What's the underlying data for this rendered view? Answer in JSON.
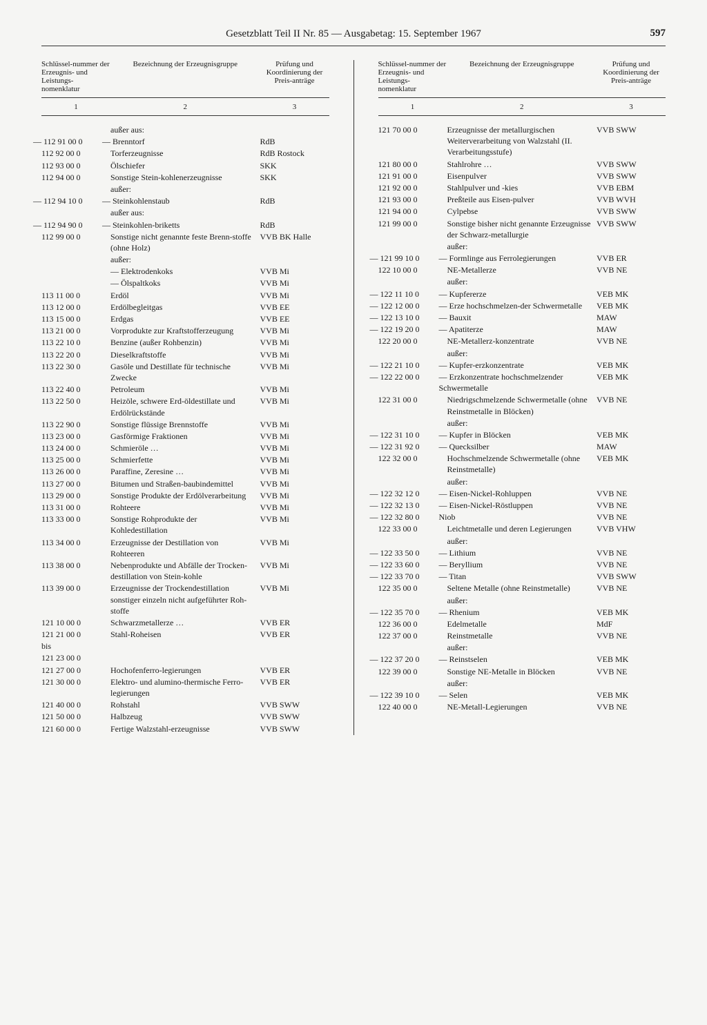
{
  "header": {
    "title": "Gesetzblatt Teil II Nr. 85 — Ausgabetag: 15. September 1967",
    "page": "597"
  },
  "table_headers": {
    "col1": "Schlüssel-nummer der Erzeugnis- und Leistungs-nomenklatur",
    "col2": "Bezeichnung der Erzeugnisgruppe",
    "col3": "Prüfung und Koordinierung der Preis-anträge",
    "n1": "1",
    "n2": "2",
    "n3": "3"
  },
  "left": [
    {
      "c1": "",
      "c2": "außer aus:",
      "c3": ""
    },
    {
      "c1": "— 112 91 00 0",
      "c2": "— Brenntorf",
      "c3": "RdB",
      "neg": true
    },
    {
      "c1": "112 92 00 0",
      "c2": "Torferzeugnisse",
      "c3": "RdB Rostock"
    },
    {
      "c1": "112 93 00 0",
      "c2": "Ölschiefer",
      "c3": "SKK"
    },
    {
      "c1": "112 94 00 0",
      "c2": "Sonstige Stein-kohlenerzeugnisse",
      "c3": "SKK"
    },
    {
      "c1": "",
      "c2": "außer:",
      "c3": ""
    },
    {
      "c1": "— 112 94 10 0",
      "c2": "— Steinkohlenstaub",
      "c3": "RdB",
      "neg": true
    },
    {
      "c1": "",
      "c2": "außer aus:",
      "c3": ""
    },
    {
      "c1": "— 112 94 90 0",
      "c2": "— Steinkohlen-briketts",
      "c3": "RdB",
      "neg": true
    },
    {
      "c1": "112 99 00 0",
      "c2": "Sonstige nicht genannte feste Brenn-stoffe (ohne Holz)",
      "c3": "VVB BK Halle"
    },
    {
      "c1": "",
      "c2": "außer:",
      "c3": ""
    },
    {
      "c1": "",
      "c2": "— Elektrodenkoks",
      "c3": "VVB Mi"
    },
    {
      "c1": "",
      "c2": "— Ölspaltkoks",
      "c3": "VVB Mi"
    },
    {
      "c1": "113 11 00 0",
      "c2": "Erdöl",
      "c3": "VVB Mi"
    },
    {
      "c1": "113 12 00 0",
      "c2": "Erdölbegleitgas",
      "c3": "VVB EE"
    },
    {
      "c1": "113 15 00 0",
      "c2": "Erdgas",
      "c3": "VVB EE"
    },
    {
      "c1": "113 21 00 0",
      "c2": "Vorprodukte zur Kraftstofferzeugung",
      "c3": "VVB Mi"
    },
    {
      "c1": "113 22 10 0",
      "c2": "Benzine (außer Rohbenzin)",
      "c3": "VVB Mi"
    },
    {
      "c1": "113 22 20 0",
      "c2": "Dieselkraftstoffe",
      "c3": "VVB Mi"
    },
    {
      "c1": "113 22 30 0",
      "c2": "Gasöle und Destillate für technische Zwecke",
      "c3": "VVB Mi"
    },
    {
      "c1": "113 22 40 0",
      "c2": "Petroleum",
      "c3": "VVB Mi"
    },
    {
      "c1": "113 22 50 0",
      "c2": "Heizöle, schwere Erd-öldestillate und Erdölrückstände",
      "c3": "VVB Mi"
    },
    {
      "c1": "113 22 90 0",
      "c2": "Sonstige flüssige Brennstoffe",
      "c3": "VVB Mi"
    },
    {
      "c1": "113 23 00 0",
      "c2": "Gasförmige Fraktionen",
      "c3": "VVB Mi"
    },
    {
      "c1": "113 24 00 0",
      "c2": "Schmieröle …",
      "c3": "VVB Mi"
    },
    {
      "c1": "113 25 00 0",
      "c2": "Schmierfette",
      "c3": "VVB Mi"
    },
    {
      "c1": "113 26 00 0",
      "c2": "Paraffine, Zeresine …",
      "c3": "VVB Mi"
    },
    {
      "c1": "113 27 00 0",
      "c2": "Bitumen und Straßen-baubindemittel",
      "c3": "VVB Mi"
    },
    {
      "c1": "113 29 00 0",
      "c2": "Sonstige Produkte der Erdölverarbeitung",
      "c3": "VVB Mi"
    },
    {
      "c1": "113 31 00 0",
      "c2": "Rohteere",
      "c3": "VVB Mi"
    },
    {
      "c1": "113 33 00 0",
      "c2": "Sonstige Rohprodukte der Kohledestillation",
      "c3": "VVB Mi"
    },
    {
      "c1": "113 34 00 0",
      "c2": "Erzeugnisse der Destillation von Rohteeren",
      "c3": "VVB Mi"
    },
    {
      "c1": "113 38 00 0",
      "c2": "Nebenprodukte und Abfälle der Trocken-destillation von Stein-kohle",
      "c3": "VVB Mi"
    },
    {
      "c1": "113 39 00 0",
      "c2": "Erzeugnisse der Trockendestillation sonstiger einzeln nicht aufgeführter Roh-stoffe",
      "c3": "VVB Mi"
    },
    {
      "c1": "121 10 00 0",
      "c2": "Schwarzmetallerze …",
      "c3": "VVB ER"
    },
    {
      "c1": "121 21 00 0",
      "c2": "Stahl-Roheisen",
      "c3": "VVB ER"
    },
    {
      "c1": "bis",
      "c2": "",
      "c3": ""
    },
    {
      "c1": "121 23 00 0",
      "c2": "",
      "c3": ""
    },
    {
      "c1": "121 27 00 0",
      "c2": "Hochofenferro-legierungen",
      "c3": "VVB ER"
    },
    {
      "c1": "121 30 00 0",
      "c2": "Elektro- und alumino-thermische Ferro-legierungen",
      "c3": "VVB ER"
    },
    {
      "c1": "121 40 00 0",
      "c2": "Rohstahl",
      "c3": "VVB SWW"
    },
    {
      "c1": "121 50 00 0",
      "c2": "Halbzeug",
      "c3": "VVB SWW"
    },
    {
      "c1": "121 60 00 0",
      "c2": "Fertige Walzstahl-erzeugnisse",
      "c3": "VVB SWW"
    }
  ],
  "right": [
    {
      "c1": "121 70 00 0",
      "c2": "Erzeugnisse der metallurgischen Weiterverarbeitung von Walzstahl (II. Verarbeitungsstufe)",
      "c3": "VVB SWW"
    },
    {
      "c1": "121 80 00 0",
      "c2": "Stahlrohre …",
      "c3": "VVB SWW"
    },
    {
      "c1": "121 91 00 0",
      "c2": "Eisenpulver",
      "c3": "VVB SWW"
    },
    {
      "c1": "121 92 00 0",
      "c2": "Stahlpulver und -kies",
      "c3": "VVB EBM"
    },
    {
      "c1": "121 93 00 0",
      "c2": "Preßteile aus Eisen-pulver",
      "c3": "VVB WVH"
    },
    {
      "c1": "121 94 00 0",
      "c2": "Cylpebse",
      "c3": "VVB SWW"
    },
    {
      "c1": "121 99 00 0",
      "c2": "Sonstige bisher nicht genannte Erzeugnisse der Schwarz-metallurgie",
      "c3": "VVB SWW"
    },
    {
      "c1": "",
      "c2": "außer:",
      "c3": ""
    },
    {
      "c1": "— 121 99 10 0",
      "c2": "— Formlinge aus Ferrolegierungen",
      "c3": "VVB ER",
      "neg": true
    },
    {
      "c1": "122 10 00 0",
      "c2": "NE-Metallerze",
      "c3": "VVB NE"
    },
    {
      "c1": "",
      "c2": "außer:",
      "c3": ""
    },
    {
      "c1": "— 122 11 10 0",
      "c2": "— Kupfererze",
      "c3": "VEB MK",
      "neg": true
    },
    {
      "c1": "— 122 12 00 0",
      "c2": "— Erze hochschmelzen-der Schwermetalle",
      "c3": "VEB MK",
      "neg": true
    },
    {
      "c1": "— 122 13 10 0",
      "c2": "— Bauxit",
      "c3": "MAW",
      "neg": true
    },
    {
      "c1": "— 122 19 20 0",
      "c2": "— Apatiterze",
      "c3": "MAW",
      "neg": true
    },
    {
      "c1": "122 20 00 0",
      "c2": "NE-Metallerz-konzentrate",
      "c3": "VVB NE"
    },
    {
      "c1": "",
      "c2": "außer:",
      "c3": ""
    },
    {
      "c1": "— 122 21 10 0",
      "c2": "— Kupfer-erzkonzentrate",
      "c3": "VEB MK",
      "neg": true
    },
    {
      "c1": "— 122 22 00 0",
      "c2": "— Erzkonzentrate hochschmelzender Schwermetalle",
      "c3": "VEB MK",
      "neg": true
    },
    {
      "c1": "122 31 00 0",
      "c2": "Niedrigschmelzende Schwermetalle (ohne Reinstmetalle in Blöcken)",
      "c3": "VVB NE"
    },
    {
      "c1": "",
      "c2": "außer:",
      "c3": ""
    },
    {
      "c1": "— 122 31 10 0",
      "c2": "— Kupfer in Blöcken",
      "c3": "VEB MK",
      "neg": true
    },
    {
      "c1": "— 122 31 92 0",
      "c2": "— Quecksilber",
      "c3": "MAW",
      "neg": true
    },
    {
      "c1": "122 32 00 0",
      "c2": "Hochschmelzende Schwermetalle (ohne Reinstmetalle)",
      "c3": "VEB MK"
    },
    {
      "c1": "",
      "c2": "außer:",
      "c3": ""
    },
    {
      "c1": "— 122 32 12 0",
      "c2": "— Eisen-Nickel-Rohluppen",
      "c3": "VVB NE",
      "neg": true
    },
    {
      "c1": "— 122 32 13 0",
      "c2": "— Eisen-Nickel-Röstluppen",
      "c3": "VVB NE",
      "neg": true
    },
    {
      "c1": "— 122 32 80 0",
      "c2": "Niob",
      "c3": "VVB NE",
      "neg": true
    },
    {
      "c1": "122 33 00 0",
      "c2": "Leichtmetalle und deren Legierungen",
      "c3": "VVB VHW"
    },
    {
      "c1": "",
      "c2": "außer:",
      "c3": ""
    },
    {
      "c1": "— 122 33 50 0",
      "c2": "— Lithium",
      "c3": "VVB NE",
      "neg": true
    },
    {
      "c1": "— 122 33 60 0",
      "c2": "— Beryllium",
      "c3": "VVB NE",
      "neg": true
    },
    {
      "c1": "— 122 33 70 0",
      "c2": "— Titan",
      "c3": "VVB SWW",
      "neg": true
    },
    {
      "c1": "122 35 00 0",
      "c2": "Seltene Metalle (ohne Reinstmetalle)",
      "c3": "VVB NE"
    },
    {
      "c1": "",
      "c2": "außer:",
      "c3": ""
    },
    {
      "c1": "— 122 35 70 0",
      "c2": "— Rhenium",
      "c3": "VEB MK",
      "neg": true
    },
    {
      "c1": "122 36 00 0",
      "c2": "Edelmetalle",
      "c3": "MdF"
    },
    {
      "c1": "122 37 00 0",
      "c2": "Reinstmetalle",
      "c3": "VVB NE"
    },
    {
      "c1": "",
      "c2": "außer:",
      "c3": ""
    },
    {
      "c1": "— 122 37 20 0",
      "c2": "— Reinstselen",
      "c3": "VEB MK",
      "neg": true
    },
    {
      "c1": "122 39 00 0",
      "c2": "Sonstige NE-Metalle in Blöcken",
      "c3": "VVB NE"
    },
    {
      "c1": "",
      "c2": "außer:",
      "c3": ""
    },
    {
      "c1": "— 122 39 10 0",
      "c2": "— Selen",
      "c3": "VEB MK",
      "neg": true
    },
    {
      "c1": "122 40 00 0",
      "c2": "NE-Metall-Legierungen",
      "c3": "VVB NE"
    }
  ]
}
